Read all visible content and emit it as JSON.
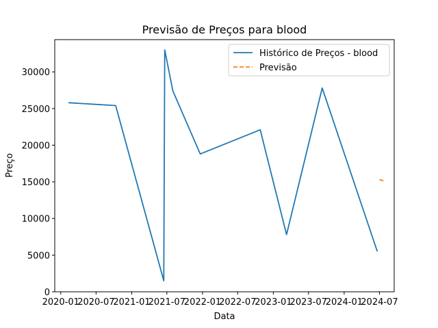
{
  "chart_data": {
    "type": "line",
    "title": "Previsão de Preços para blood",
    "xlabel": "Data",
    "ylabel": "Preço",
    "x_ticks": [
      "2020-01",
      "2020-07",
      "2021-01",
      "2021-07",
      "2022-01",
      "2022-07",
      "2023-01",
      "2023-07",
      "2024-01",
      "2024-07"
    ],
    "y_ticks": [
      0,
      5000,
      10000,
      15000,
      20000,
      25000,
      30000
    ],
    "ylim": [
      0,
      34400
    ],
    "xlim": [
      "2019-12-01",
      "2024-09-15"
    ],
    "grid": false,
    "legend_position": "top-right",
    "series": [
      {
        "name": "Histórico de Preços - blood",
        "color": "#1f77b4",
        "style": "solid",
        "points": [
          {
            "x": "2020-02-10",
            "y": 25800
          },
          {
            "x": "2020-10-10",
            "y": 25400
          },
          {
            "x": "2021-06-15",
            "y": 1500
          },
          {
            "x": "2021-06-20",
            "y": 33000
          },
          {
            "x": "2021-08-01",
            "y": 27400
          },
          {
            "x": "2021-12-20",
            "y": 18800
          },
          {
            "x": "2022-10-25",
            "y": 22100
          },
          {
            "x": "2023-03-10",
            "y": 7800
          },
          {
            "x": "2023-09-10",
            "y": 27800
          },
          {
            "x": "2024-06-20",
            "y": 5500
          }
        ]
      },
      {
        "name": "Previsão",
        "color": "#ff7f0e",
        "style": "dashed",
        "points": [
          {
            "x": "2024-07-01",
            "y": 15300
          },
          {
            "x": "2024-07-25",
            "y": 15100
          }
        ]
      }
    ]
  }
}
